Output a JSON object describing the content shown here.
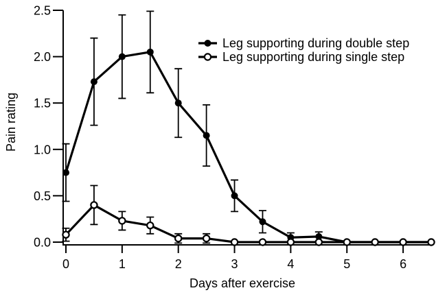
{
  "chart_data": {
    "type": "line",
    "title": "",
    "xlabel": "Days after exercise",
    "ylabel": "Pain rating",
    "x": [
      0,
      0.5,
      1,
      1.5,
      2,
      2.5,
      3,
      3.5,
      4,
      4.5,
      5,
      5.5,
      6,
      6.5
    ],
    "series": [
      {
        "name": "Leg supporting during double step",
        "marker": "filled-circle",
        "values": [
          0.75,
          1.73,
          2.0,
          2.05,
          1.5,
          1.15,
          0.5,
          0.22,
          0.05,
          0.06,
          0,
          0,
          0,
          0
        ],
        "errors": [
          0.31,
          0.47,
          0.45,
          0.44,
          0.37,
          0.33,
          0.17,
          0.12,
          0.05,
          0.05,
          0,
          0,
          0,
          0
        ]
      },
      {
        "name": "Leg supporting during single step",
        "marker": "open-circle",
        "values": [
          0.08,
          0.4,
          0.23,
          0.18,
          0.04,
          0.04,
          0,
          0,
          0,
          0,
          0,
          0,
          0,
          0
        ],
        "errors": [
          0.07,
          0.21,
          0.1,
          0.09,
          0.05,
          0.05,
          0,
          0,
          0,
          0,
          0,
          0,
          0,
          0
        ]
      }
    ],
    "xlim": [
      0,
      6.5
    ],
    "ylim": [
      0,
      2.5
    ],
    "x_ticks": [
      {
        "value": 0,
        "label": "0"
      },
      {
        "value": 1,
        "label": "1"
      },
      {
        "value": 2,
        "label": "2"
      },
      {
        "value": 3,
        "label": "3"
      },
      {
        "value": 4,
        "label": "4"
      },
      {
        "value": 5,
        "label": "5"
      },
      {
        "value": 6,
        "label": "6"
      }
    ],
    "y_ticks": [
      {
        "value": 0,
        "label": "0.0"
      },
      {
        "value": 0.5,
        "label": "0.5"
      },
      {
        "value": 1,
        "label": "1.0"
      },
      {
        "value": 1.5,
        "label": "1.5"
      },
      {
        "value": 2,
        "label": "2.0"
      },
      {
        "value": 2.5,
        "label": "2.5"
      }
    ],
    "grid": false,
    "legend_position": "upper-right",
    "colors": {
      "line": "#000000",
      "background": "#ffffff",
      "open_marker_fill": "#ffffff"
    }
  }
}
